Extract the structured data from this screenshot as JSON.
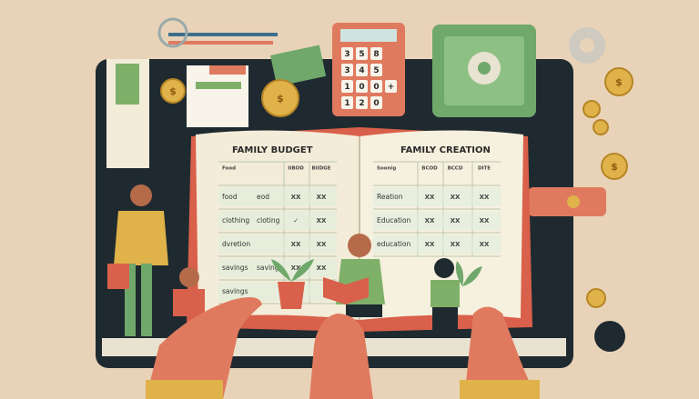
{
  "left_page": {
    "title": "FAMILY BUDGET",
    "header": [
      "Food",
      "IIBOD",
      "BIIDGE"
    ],
    "rows": [
      {
        "label": "food",
        "note": "eod",
        "marks": [
          "XX",
          "XX"
        ]
      },
      {
        "label": "clothing",
        "note": "cloting",
        "marks": [
          "✓",
          "XX"
        ]
      },
      {
        "label": "dvretion",
        "marks": [
          "XX",
          "XX"
        ]
      },
      {
        "label": "savings",
        "note": "saving",
        "marks": [
          "XX",
          "XX"
        ]
      },
      {
        "label": "savings"
      }
    ]
  },
  "right_page": {
    "title": "FAMILY CREATION",
    "header": [
      "Soonig",
      "BCOD",
      "BCCD",
      "DITE"
    ],
    "rows": [
      {
        "label": "Reation",
        "marks": [
          "XX",
          "XX",
          "XX"
        ]
      },
      {
        "label": "Education",
        "marks": [
          "XX",
          "XX",
          "XX"
        ]
      },
      {
        "label": "education",
        "marks": [
          "XX",
          "XX",
          "XX"
        ]
      }
    ]
  },
  "calculator": {
    "keys": [
      [
        "3",
        "5",
        "8"
      ],
      [
        "3",
        "4",
        "5"
      ],
      [
        "1",
        "0",
        "0",
        "+"
      ],
      [
        "1",
        "2",
        "0"
      ]
    ]
  },
  "coin_symbol": "$"
}
